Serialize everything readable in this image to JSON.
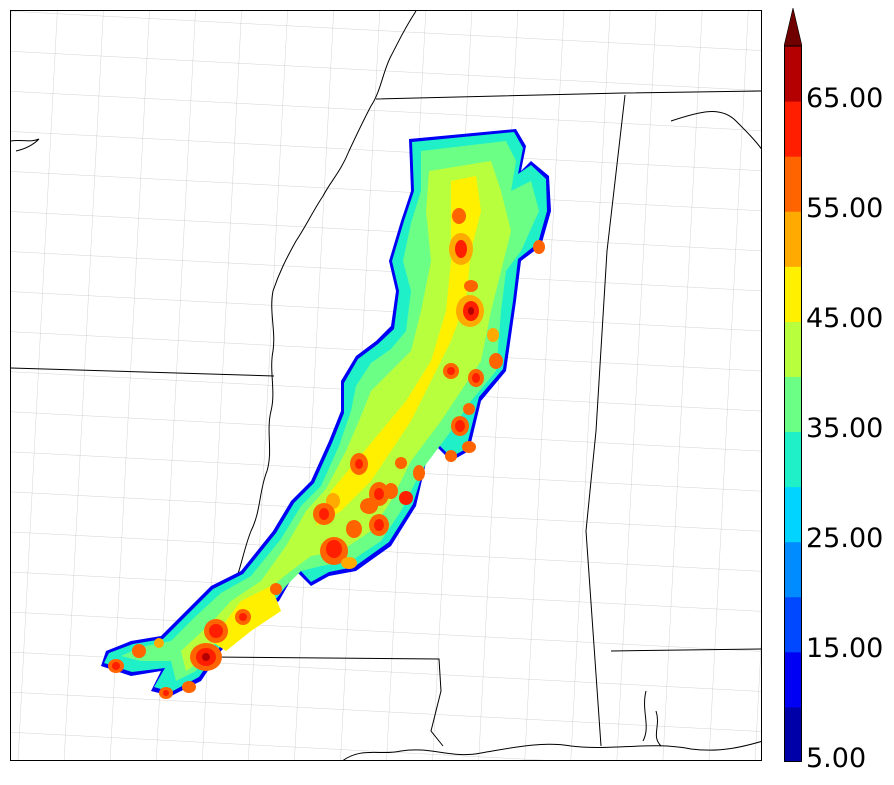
{
  "colorbar": {
    "levels": [
      5,
      10,
      15,
      20,
      25,
      30,
      35,
      40,
      45,
      50,
      55,
      60,
      65,
      70
    ],
    "colors": [
      "#0000a8",
      "#0000f5",
      "#0048ff",
      "#008cff",
      "#00d4ff",
      "#20f0c8",
      "#6cff86",
      "#b8ff3e",
      "#fff000",
      "#ffaa00",
      "#ff6400",
      "#ff1e00",
      "#b40000"
    ],
    "extend_color": "#700000",
    "extend": "max",
    "tick_labels": [
      "65.00",
      "55.00",
      "45.00",
      "35.00",
      "25.00",
      "15.00",
      "5.00"
    ]
  },
  "map": {
    "projection": "lambert-conformal",
    "region": "Lower Mississippi Valley and Gulf Coast",
    "state_line_color": "#000000",
    "county_line_color": "#9a9a9a"
  }
}
